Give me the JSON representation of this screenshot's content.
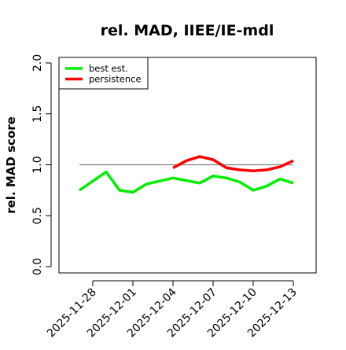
{
  "chart_data": {
    "type": "line",
    "title": "rel. MAD, IIEE/IE-mdl",
    "xlabel": "",
    "ylabel": "rel. MAD score",
    "ylim": [
      0.0,
      2.0
    ],
    "yticks": [
      "0.0",
      "0.5",
      "1.0",
      "1.5",
      "2.0"
    ],
    "xticks": [
      "2025-11-28",
      "2025-12-01",
      "2025-12-04",
      "2025-12-07",
      "2025-12-10",
      "2025-12-13"
    ],
    "grid": false,
    "legend_position": "top-left",
    "reference_line": {
      "y": 1.0,
      "x_from": "2025-11-27",
      "x_to": "2025-12-13",
      "color": "#808080"
    },
    "series": [
      {
        "name": "best est.",
        "color": "#00ee00",
        "points": [
          [
            "2025-11-27",
            0.75
          ],
          [
            "2025-11-29",
            0.93
          ],
          [
            "2025-11-30",
            0.75
          ],
          [
            "2025-12-01",
            0.73
          ],
          [
            "2025-12-02",
            0.81
          ],
          [
            "2025-12-04",
            0.87
          ],
          [
            "2025-12-06",
            0.82
          ],
          [
            "2025-12-07",
            0.89
          ],
          [
            "2025-12-08",
            0.87
          ],
          [
            "2025-12-09",
            0.83
          ],
          [
            "2025-12-10",
            0.75
          ],
          [
            "2025-12-11",
            0.79
          ],
          [
            "2025-12-12",
            0.86
          ],
          [
            "2025-12-13",
            0.82
          ]
        ]
      },
      {
        "name": "persistence",
        "color": "#ff0000",
        "points": [
          [
            "2025-12-04",
            0.97
          ],
          [
            "2025-12-05",
            1.04
          ],
          [
            "2025-12-06",
            1.08
          ],
          [
            "2025-12-07",
            1.05
          ],
          [
            "2025-12-08",
            0.97
          ],
          [
            "2025-12-09",
            0.95
          ],
          [
            "2025-12-10",
            0.94
          ],
          [
            "2025-12-11",
            0.95
          ],
          [
            "2025-12-12",
            0.98
          ],
          [
            "2025-12-13",
            1.04
          ]
        ]
      }
    ]
  }
}
